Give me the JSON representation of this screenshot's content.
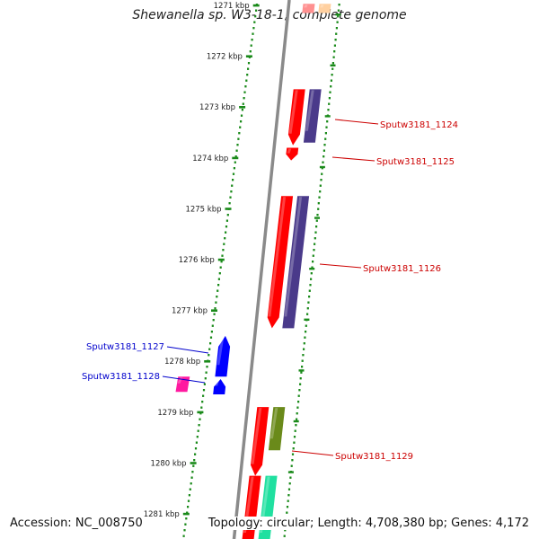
{
  "title": "Shewanella sp. W3-18-1, complete genome",
  "footer": {
    "accession": "Accession: NC_008750",
    "summary": "Topology: circular; Length: 4,708,380 bp; Genes: 4,172"
  },
  "colors": {
    "backbone": "#8a8a8a",
    "dots": "#1a8a1a",
    "label_right": "#cc0000",
    "label_left": "#0000cc"
  },
  "kbp_ticks": [
    {
      "kbp": 1271,
      "label": "1271 kbp"
    },
    {
      "kbp": 1272,
      "label": "1272 kbp"
    },
    {
      "kbp": 1273,
      "label": "1273 kbp"
    },
    {
      "kbp": 1274,
      "label": "1274 kbp"
    },
    {
      "kbp": 1275,
      "label": "1275 kbp"
    },
    {
      "kbp": 1276,
      "label": "1276 kbp"
    },
    {
      "kbp": 1277,
      "label": "1277 kbp"
    },
    {
      "kbp": 1278,
      "label": "1278 kbp"
    },
    {
      "kbp": 1279,
      "label": "1279 kbp"
    },
    {
      "kbp": 1280,
      "label": "1280 kbp"
    },
    {
      "kbp": 1281,
      "label": "1281 kbp"
    }
  ],
  "genes": [
    {
      "name": "Sputw3181_1124",
      "side": "right",
      "start_kbp": 1272.65,
      "end_kbp": 1273.75,
      "strand": "-",
      "color": "#ff0000"
    },
    {
      "name": "Sputw3181_1125",
      "side": "right",
      "start_kbp": 1273.8,
      "end_kbp": 1274.05,
      "strand": "-",
      "color": "#ff0000"
    },
    {
      "name": "Sputw3181_1126",
      "side": "right",
      "start_kbp": 1274.75,
      "end_kbp": 1277.35,
      "strand": "-",
      "color": "#ff0000"
    },
    {
      "name": "Sputw3181_1127",
      "side": "left",
      "start_kbp": 1277.5,
      "end_kbp": 1278.3,
      "strand": "+",
      "color": "#0000ff"
    },
    {
      "name": "Sputw3181_1128",
      "side": "left",
      "start_kbp": 1278.35,
      "end_kbp": 1278.65,
      "strand": "+",
      "color": "#0000ff"
    },
    {
      "name": "Sputw3181_1129",
      "side": "right",
      "start_kbp": 1278.9,
      "end_kbp": 1280.25,
      "strand": "-",
      "color": "#ff0000"
    }
  ],
  "feature_blocks": [
    {
      "kind": "cds-top",
      "start_kbp": 1270.97,
      "end_kbp": 1271.15,
      "color": "#ff9090"
    },
    {
      "kind": "match-top",
      "start_kbp": 1270.97,
      "end_kbp": 1271.15,
      "color": "#ffd0a0"
    },
    {
      "kind": "match-1124",
      "start_kbp": 1272.65,
      "end_kbp": 1273.7,
      "color": "#4a3a8a"
    },
    {
      "kind": "match-1126",
      "start_kbp": 1274.75,
      "end_kbp": 1277.35,
      "color": "#4a3a8a"
    },
    {
      "kind": "rna-1128",
      "start_kbp": 1278.3,
      "end_kbp": 1278.6,
      "color": "#ff1aa0"
    },
    {
      "kind": "match-1129",
      "start_kbp": 1278.9,
      "end_kbp": 1279.75,
      "color": "#6a8a1a"
    },
    {
      "kind": "cds-bottom",
      "start_kbp": 1280.25,
      "end_kbp": 1281.6,
      "color": "#ff0000"
    },
    {
      "kind": "match-bottom",
      "start_kbp": 1280.25,
      "end_kbp": 1281.6,
      "color": "#20e0a0"
    }
  ]
}
